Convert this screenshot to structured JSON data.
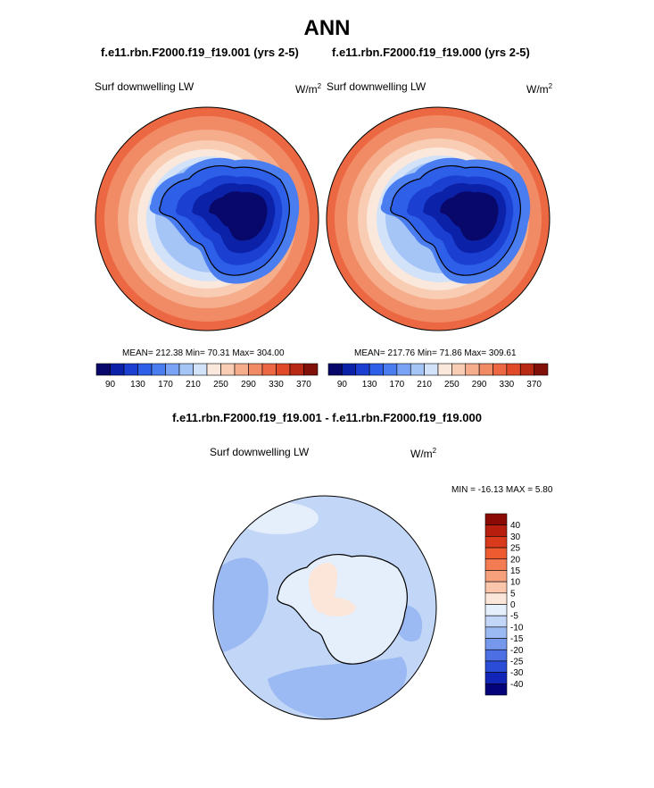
{
  "title": "ANN",
  "panels": [
    {
      "case": "f.e11.rbn.F2000.f19_f19.001 (yrs 2-5)",
      "variable": "Surf downwelling LW",
      "units_base": "W/m",
      "units_exp": "2",
      "stats": "MEAN= 212.38  Min=  70.31  Max= 304.00"
    },
    {
      "case": "f.e11.rbn.F2000.f19_f19.000 (yrs 2-5)",
      "variable": "Surf downwelling LW",
      "units_base": "W/m",
      "units_exp": "2",
      "stats": "MEAN= 217.76  Min=  71.86  Max= 309.61"
    }
  ],
  "difference": {
    "title": "f.e11.rbn.F2000.f19_f19.001 - f.e11.rbn.F2000.f19_f19.000",
    "variable": "Surf downwelling LW",
    "units_base": "W/m",
    "units_exp": "2",
    "stats": "MIN = -16.13 MAX =   5.80"
  },
  "chart_data": [
    {
      "type": "heatmap",
      "projection": "south-polar-stereographic",
      "colorbar": {
        "orientation": "horizontal",
        "tick_labels": [
          "90",
          "130",
          "170",
          "210",
          "250",
          "290",
          "330",
          "370"
        ],
        "colors": [
          "#08086b",
          "#0b22a8",
          "#1a3fd1",
          "#2e5fe8",
          "#4a7ef0",
          "#7aa3f5",
          "#a6c5f7",
          "#d2e2f9",
          "#fbe8dc",
          "#f8cdb3",
          "#f5ad8c",
          "#f18b66",
          "#ec6843",
          "#e04a28",
          "#b82a14",
          "#801008"
        ]
      },
      "field": "surface downwelling longwave (case 001)",
      "mean": 212.38,
      "min": 70.31,
      "max": 304.0
    },
    {
      "type": "heatmap",
      "projection": "south-polar-stereographic",
      "colorbar": {
        "orientation": "horizontal",
        "tick_labels": [
          "90",
          "130",
          "170",
          "210",
          "250",
          "290",
          "330",
          "370"
        ],
        "colors": [
          "#08086b",
          "#0b22a8",
          "#1a3fd1",
          "#2e5fe8",
          "#4a7ef0",
          "#7aa3f5",
          "#a6c5f7",
          "#d2e2f9",
          "#fbe8dc",
          "#f8cdb3",
          "#f5ad8c",
          "#f18b66",
          "#ec6843",
          "#e04a28",
          "#b82a14",
          "#801008"
        ]
      },
      "field": "surface downwelling longwave (case 000)",
      "mean": 217.76,
      "min": 71.86,
      "max": 309.61
    },
    {
      "type": "heatmap",
      "projection": "south-polar-stereographic",
      "colorbar": {
        "orientation": "vertical",
        "tick_labels": [
          "40",
          "30",
          "25",
          "20",
          "15",
          "10",
          "5",
          "0",
          "-5",
          "-10",
          "-15",
          "-20",
          "-25",
          "-30",
          "-40"
        ],
        "colors": [
          "#8b0a05",
          "#b81e0e",
          "#d93a1c",
          "#ee5b30",
          "#f47c52",
          "#f7a07c",
          "#fac5aa",
          "#fbe6d9",
          "#e5eefb",
          "#c2d6f7",
          "#9bb9f2",
          "#7598ec",
          "#4c70e3",
          "#2a4cd6",
          "#1126b8",
          "#05037a"
        ]
      },
      "field": "difference",
      "min": -16.13,
      "max": 5.8
    }
  ]
}
